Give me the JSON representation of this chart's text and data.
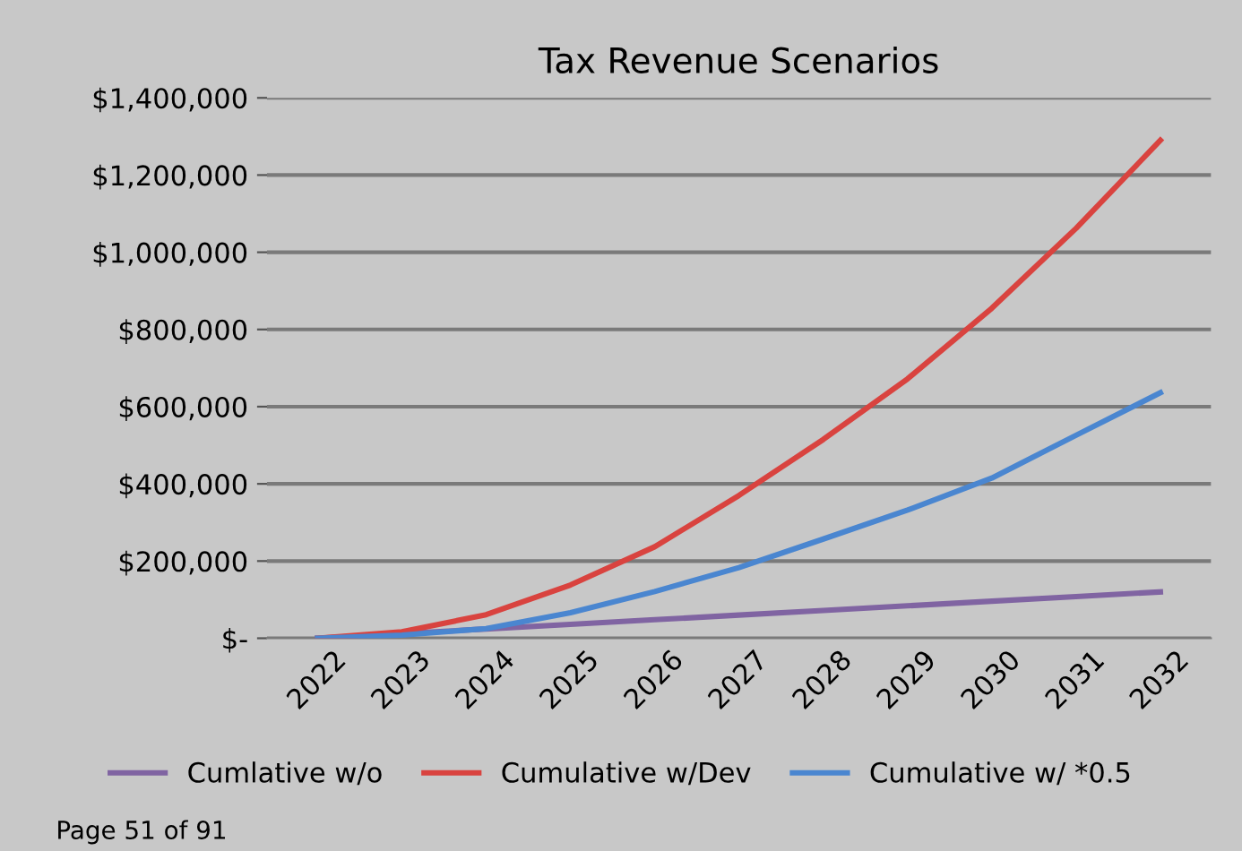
{
  "chart_data": {
    "type": "line",
    "title": "Tax Revenue Scenarios",
    "categories": [
      "2022",
      "2023",
      "2024",
      "2025",
      "2026",
      "2027",
      "2028",
      "2029",
      "2030",
      "2031",
      "2032"
    ],
    "series": [
      {
        "name": "Cumlative w/o",
        "color": "#8064a2",
        "values": [
          0,
          12000,
          24000,
          36000,
          48000,
          60000,
          72000,
          84000,
          96000,
          108000,
          120000
        ]
      },
      {
        "name": "Cumulative w/Dev",
        "color": "#d9433f",
        "values": [
          0,
          17000,
          61000,
          138000,
          237000,
          370000,
          515000,
          672000,
          855000,
          1062000,
          1290000
        ]
      },
      {
        "name": "Cumulative w/ *0.5",
        "color": "#4a86d0",
        "values": [
          0,
          8000,
          25000,
          66000,
          121000,
          183000,
          257000,
          332000,
          415000,
          526000,
          636000
        ]
      }
    ],
    "ylim": [
      0,
      1400000
    ],
    "yticks": [
      {
        "value": 0,
        "label": "$-"
      },
      {
        "value": 200000,
        "label": "$200,000"
      },
      {
        "value": 400000,
        "label": "$400,000"
      },
      {
        "value": 600000,
        "label": "$600,000"
      },
      {
        "value": 800000,
        "label": "$800,000"
      },
      {
        "value": 1000000,
        "label": "$1,000,000"
      },
      {
        "value": 1200000,
        "label": "$1,200,000"
      },
      {
        "value": 1400000,
        "label": "$1,400,000"
      }
    ],
    "grid": "y",
    "legend": "bottom",
    "marker": "none",
    "line_style": "solid",
    "annotations": [
      "Page 51 of 91"
    ]
  }
}
